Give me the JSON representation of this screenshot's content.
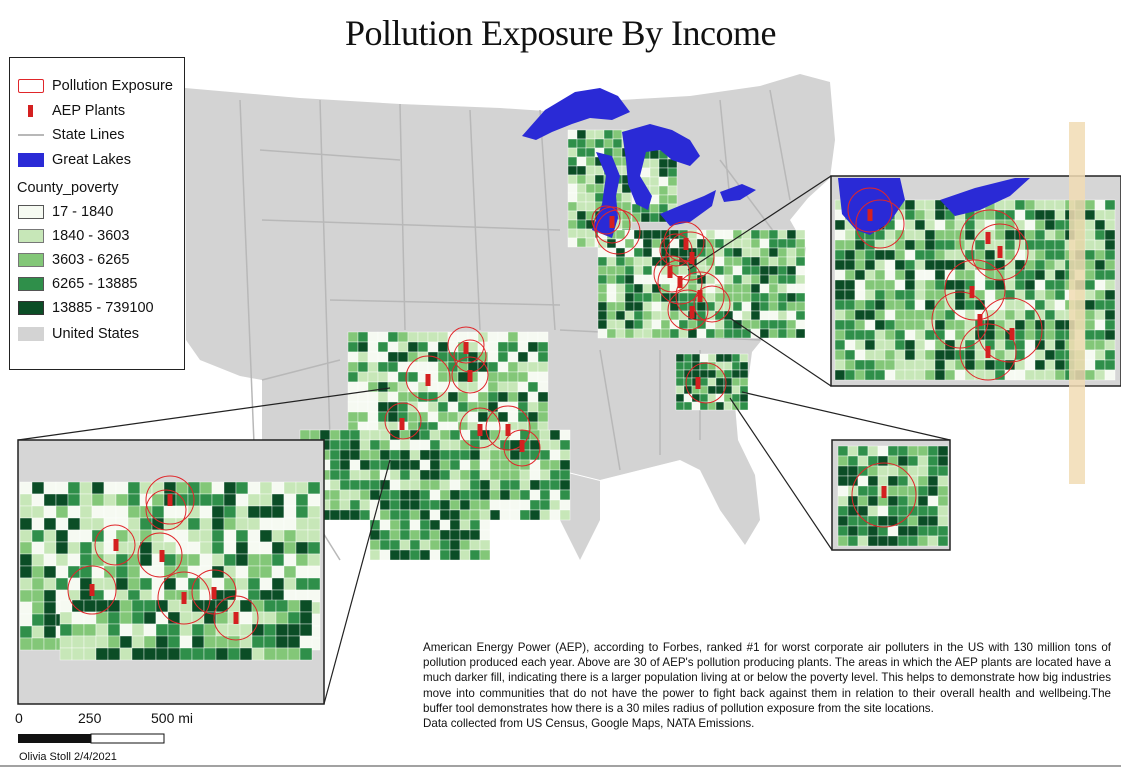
{
  "title": "Pollution Exposure By Income",
  "legend": {
    "items": [
      {
        "label": "Pollution Exposure",
        "icon": "red-circle-outline"
      },
      {
        "label": "AEP Plants",
        "icon": "red-bar"
      },
      {
        "label": "State Lines",
        "icon": "gray-line"
      },
      {
        "label": "Great Lakes",
        "icon": "blue-fill"
      }
    ],
    "poverty_heading": "County_poverty",
    "classes": [
      {
        "label": "17 - 1840",
        "color": "#f6faf2"
      },
      {
        "label": "1840 - 3603",
        "color": "#c7e7b8"
      },
      {
        "label": "3603 - 6265",
        "color": "#83c778"
      },
      {
        "label": "6265 - 13885",
        "color": "#2f8f4a"
      },
      {
        "label": "13885 - 739100",
        "color": "#0b4d26"
      }
    ],
    "us_label": "United States",
    "colors": {
      "us": "#d3d3d3",
      "lakes": "#2a2ad6",
      "exposure": "#e0262a",
      "plant": "#d42020",
      "state_lines": "#b8b8b8"
    }
  },
  "description": "American Energy Power (AEP), according to Forbes, ranked #1 for worst corporate air polluters in the US with 130 million tons of pollution produced each year. Above are 30 of AEP's pollution producing plants. The areas in which the AEP plants are located have a much darker fill, indicating there is a larger population living at or below the poverty level. This helps to demonstrate how big industries move into communities that do not have the power to fight back against them in relation to their overall health and wellbeing.The buffer tool demonstrates how there is a 30 miles radius of pollution exposure from the site locations.",
  "sources": "Data collected from US Census, Google Maps, NATA Emissions.",
  "scale": {
    "labels": [
      "0",
      "250",
      "500 mi"
    ]
  },
  "author": "Olivia Stoll 2/4/2021"
}
